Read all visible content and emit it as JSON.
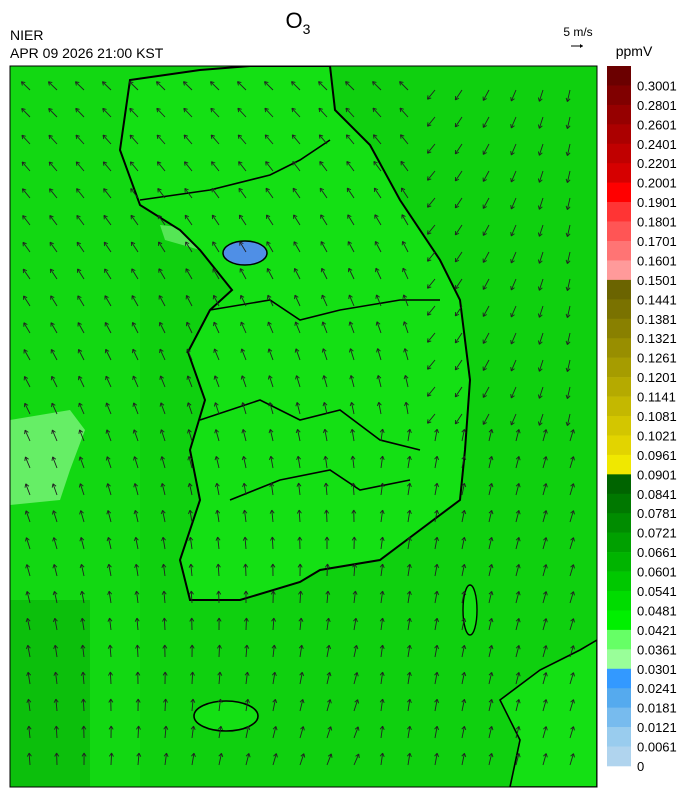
{
  "header": {
    "title": "O",
    "title_sub": "3",
    "agency": "NIER",
    "datetime": "APR 09 2026 21:00 KST"
  },
  "wind_scale": {
    "label": "5 m/s"
  },
  "colorbar": {
    "unit": "ppmV",
    "labels": [
      "0.3001",
      "0.2801",
      "0.2601",
      "0.2401",
      "0.2201",
      "0.2001",
      "0.1901",
      "0.1801",
      "0.1701",
      "0.1601",
      "0.1501",
      "0.1441",
      "0.1381",
      "0.1321",
      "0.1261",
      "0.1201",
      "0.1141",
      "0.1081",
      "0.1021",
      "0.0961",
      "0.0901",
      "0.0841",
      "0.0781",
      "0.0721",
      "0.0661",
      "0.0601",
      "0.0541",
      "0.0481",
      "0.0421",
      "0.0361",
      "0.0301",
      "0.0241",
      "0.0181",
      "0.0121",
      "0.0061",
      "0"
    ],
    "colors": [
      "#6b0000",
      "#800000",
      "#960000",
      "#ab0000",
      "#c00000",
      "#d60000",
      "#ff0000",
      "#ff3434",
      "#ff5555",
      "#ff7474",
      "#ff9a9a",
      "#6b6400",
      "#7a7200",
      "#898000",
      "#988e00",
      "#a69c00",
      "#b5aa00",
      "#c4b800",
      "#d3c600",
      "#e2d400",
      "#f0e800",
      "#006400",
      "#007800",
      "#008c00",
      "#00a000",
      "#00b400",
      "#00c800",
      "#00dc00",
      "#00f000",
      "#66ff66",
      "#99ff99",
      "#3399ff",
      "#55aaee",
      "#77bbee",
      "#99ccee",
      "#b0d4ee"
    ]
  }
}
